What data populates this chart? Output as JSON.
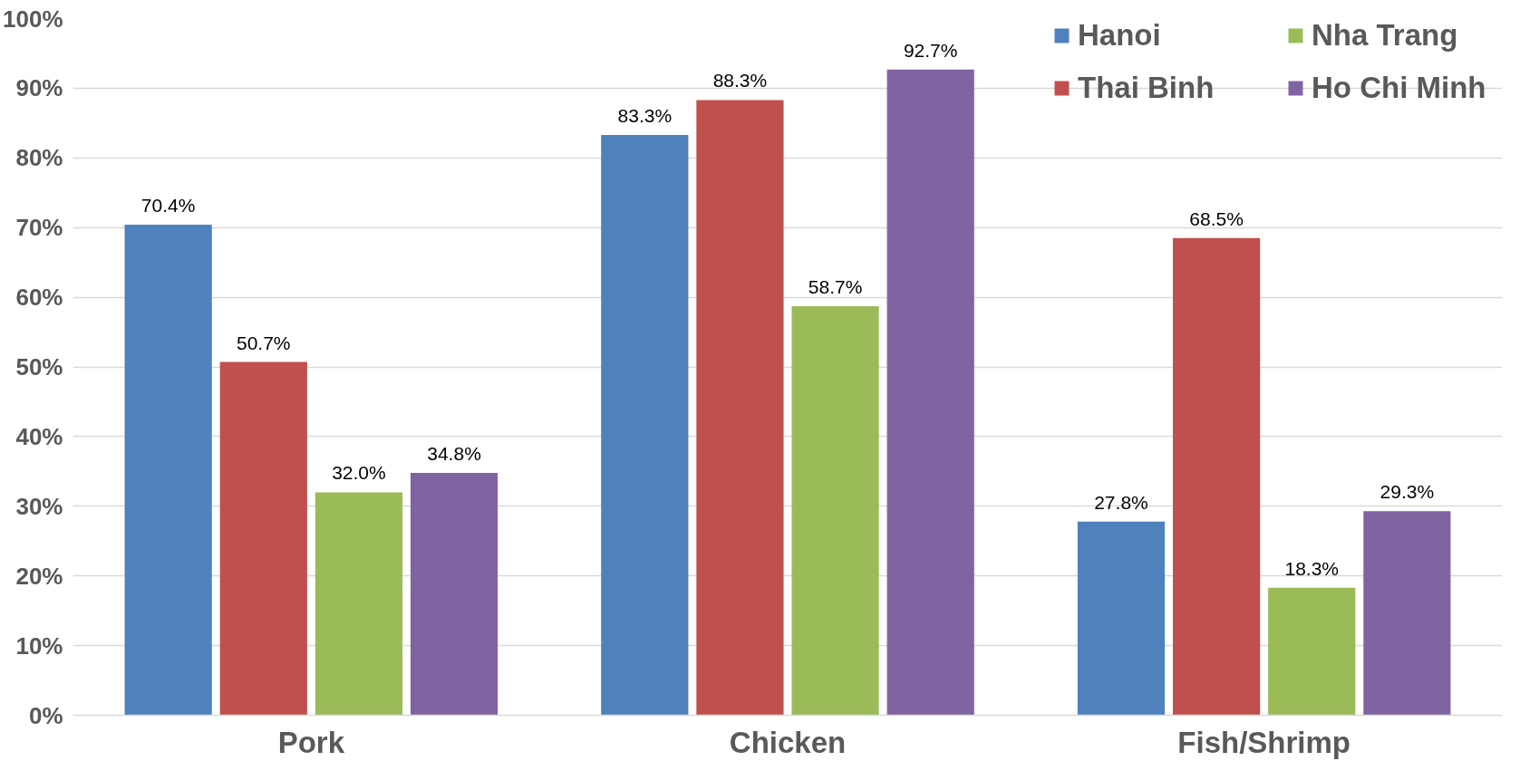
{
  "chart_data": {
    "type": "bar",
    "categories": [
      "Pork",
      "Chicken",
      "Fish/Shrimp"
    ],
    "series": [
      {
        "name": "Hanoi",
        "color": "#4f81bd",
        "values": [
          70.4,
          83.3,
          27.8
        ],
        "value_labels": [
          "70.4%",
          "83.3%",
          "27.8%"
        ]
      },
      {
        "name": "Thai Binh",
        "color": "#c0504d",
        "values": [
          50.7,
          88.3,
          68.5
        ],
        "value_labels": [
          "50.7%",
          "88.3%",
          "68.5%"
        ]
      },
      {
        "name": "Nha Trang",
        "color": "#9bbb59",
        "values": [
          32.0,
          58.7,
          18.3
        ],
        "value_labels": [
          "32.0%",
          "58.7%",
          "18.3%"
        ]
      },
      {
        "name": "Ho Chi Minh",
        "color": "#8064a2",
        "values": [
          34.8,
          92.7,
          29.3
        ],
        "value_labels": [
          "34.8%",
          "92.7%",
          "29.3%"
        ]
      }
    ],
    "ylim": [
      0,
      100
    ],
    "yticks": [
      {
        "value": 0,
        "label": "0%"
      },
      {
        "value": 10,
        "label": "10%"
      },
      {
        "value": 20,
        "label": "20%"
      },
      {
        "value": 30,
        "label": "30%"
      },
      {
        "value": 40,
        "label": "40%"
      },
      {
        "value": 50,
        "label": "50%"
      },
      {
        "value": 60,
        "label": "60%"
      },
      {
        "value": 70,
        "label": "70%"
      },
      {
        "value": 80,
        "label": "80%"
      },
      {
        "value": 90,
        "label": "90%"
      },
      {
        "value": 100,
        "label": "100%"
      }
    ],
    "grid": "y",
    "legend": "top right"
  }
}
